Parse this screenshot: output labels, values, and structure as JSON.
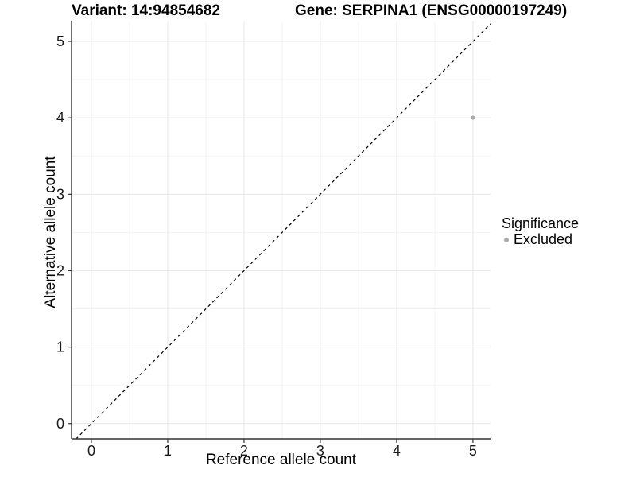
{
  "chart_data": {
    "type": "scatter",
    "title_left": "Variant: 14:94854682",
    "title_right": "Gene: SERPINA1 (ENSG00000197249)",
    "xlabel": "Reference allele count",
    "ylabel": "Alternative allele count",
    "x_ticks": [
      0,
      1,
      2,
      3,
      4,
      5
    ],
    "y_ticks": [
      0,
      1,
      2,
      3,
      4,
      5
    ],
    "xlim": [
      -0.26,
      5.23
    ],
    "ylim": [
      -0.2,
      5.26
    ],
    "grid": "major+minor",
    "minor_step": 0.5,
    "reference_line": {
      "style": "dashed",
      "slope": 1,
      "intercept": 0,
      "color": "#000000",
      "equation": "y = x"
    },
    "series": [
      {
        "name": "Excluded",
        "color": "#aaaaaa",
        "points": [
          {
            "x": 5,
            "y": 4
          }
        ]
      }
    ],
    "legend": {
      "title": "Significance",
      "position": "right",
      "entries": [
        {
          "label": "Excluded",
          "color": "#aaaaaa"
        }
      ]
    },
    "colors": {
      "panel_background": "#ffffff",
      "grid_major": "#e7e7e7",
      "grid_minor": "#f2f2f2",
      "axis": "#333333",
      "tick_label": "#1a1a1a"
    }
  }
}
